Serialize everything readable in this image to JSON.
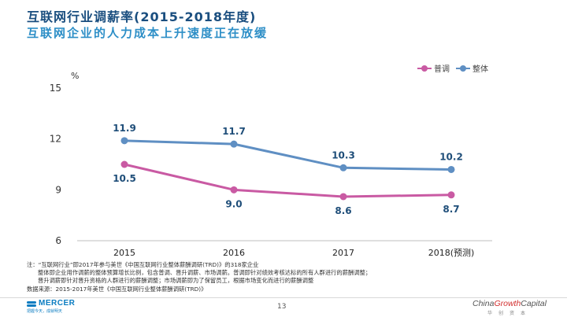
{
  "header": {
    "title": "互联网行业调薪率(2015-2018年度)",
    "subtitle": "互联网企业的人力成本上升速度正在放缓"
  },
  "colors": {
    "pu_tiao": "#c95aa3",
    "zheng_ti": "#5f8fc3",
    "title": "#1a4e7f",
    "subtitle": "#2e8fc7"
  },
  "chart_data": {
    "type": "line",
    "categories": [
      "2015",
      "2016",
      "2017",
      "2018(预测)"
    ],
    "series": [
      {
        "name": "普调",
        "values": [
          10.5,
          9.0,
          8.6,
          8.7
        ],
        "labels": [
          "10.5",
          "9.0",
          "8.6",
          "8.7"
        ],
        "label_position": "below"
      },
      {
        "name": "整体",
        "values": [
          11.9,
          11.7,
          10.3,
          10.2
        ],
        "labels": [
          "11.9",
          "11.7",
          "10.3",
          "10.2"
        ],
        "label_position": "above"
      }
    ],
    "ylabel": "%",
    "yticks": [
      "6",
      "9",
      "12",
      "15"
    ],
    "ylim": [
      6,
      15
    ],
    "grid": false,
    "legend_placement": "top-right"
  },
  "notes": {
    "line1": "注：“互联网行业”即2017年参与美世《中国互联网行业整体薪酬调研(TRD)》的318家企业",
    "line2": "整体即企业用作调薪的整体预算增长比例，包含普调、晋升调薪、市场调薪。普调即针对绩效考核达标的所有人群进行的薪酬调整；",
    "line3": "晋升调薪即针对晋升资格的人群进行的薪酬调整；市场调薪即为了保留员工，根据市场变化而进行的薪酬调整",
    "line4": "数据来源：2015-2017年美世《中国互联网行业整体薪酬调研(TRD)》"
  },
  "footer": {
    "brand": "MERCER",
    "brand_tagline": "把握今天，成就明天",
    "page": "13",
    "partner_pre": "China",
    "partner_mid": "Growth",
    "partner_post": "Capital",
    "partner_sub": "华创资本"
  }
}
